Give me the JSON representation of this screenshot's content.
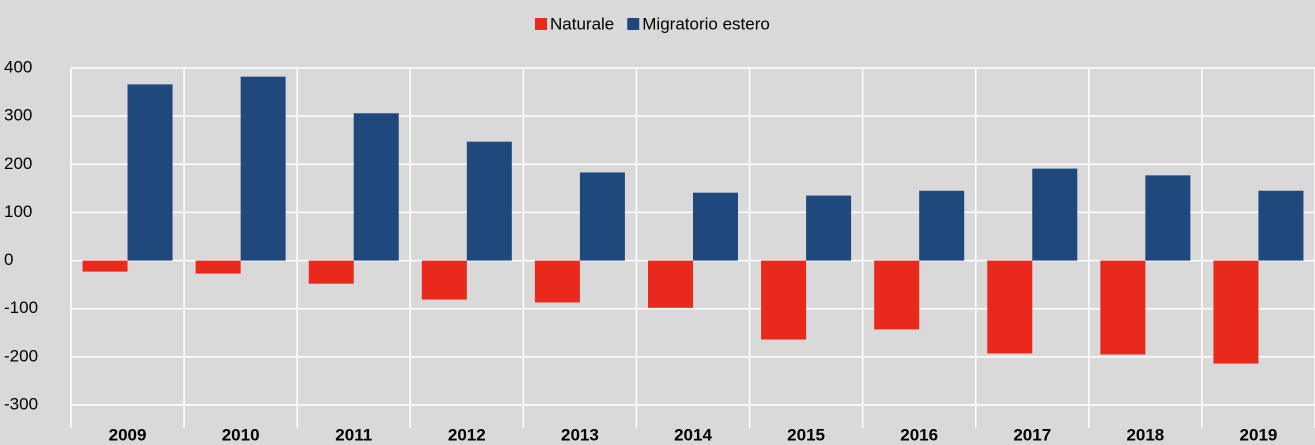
{
  "chart_data": {
    "type": "bar",
    "categories": [
      "2009",
      "2010",
      "2011",
      "2012",
      "2013",
      "2014",
      "2015",
      "2016",
      "2017",
      "2018",
      "2019"
    ],
    "series": [
      {
        "name": "Naturale",
        "color": "#e8291c",
        "values": [
          -23,
          -27,
          -48,
          -81,
          -87,
          -98,
          -164,
          -143,
          -193,
          -195,
          -214
        ]
      },
      {
        "name": "Migratorio estero",
        "color": "#1f497d",
        "values": [
          366,
          382,
          306,
          247,
          183,
          141,
          135,
          145,
          191,
          177,
          145
        ]
      }
    ],
    "ylim": [
      -300,
      400
    ],
    "yticks": [
      -300,
      -200,
      -100,
      0,
      100,
      200,
      300,
      400
    ],
    "grid": true
  }
}
